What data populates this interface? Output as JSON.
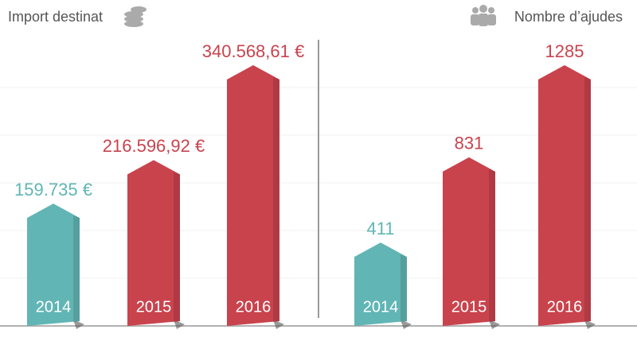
{
  "chart_data": [
    {
      "type": "bar",
      "title": "Import destinat",
      "categories": [
        "2014",
        "2015",
        "2016"
      ],
      "values": [
        159735,
        216596.92,
        340568.61
      ],
      "value_labels": [
        "159.735 €",
        "216.596,92 €",
        "340.568,61 €"
      ],
      "colors": [
        "#62b5b5",
        "#c9434d",
        "#c9434d"
      ]
    },
    {
      "type": "bar",
      "title": "Nombre d’ajudes",
      "categories": [
        "2014",
        "2015",
        "2016"
      ],
      "values": [
        411,
        831,
        1285
      ],
      "colors": [
        "#62b5b5",
        "#c9434d",
        "#c9434d"
      ]
    }
  ]
}
